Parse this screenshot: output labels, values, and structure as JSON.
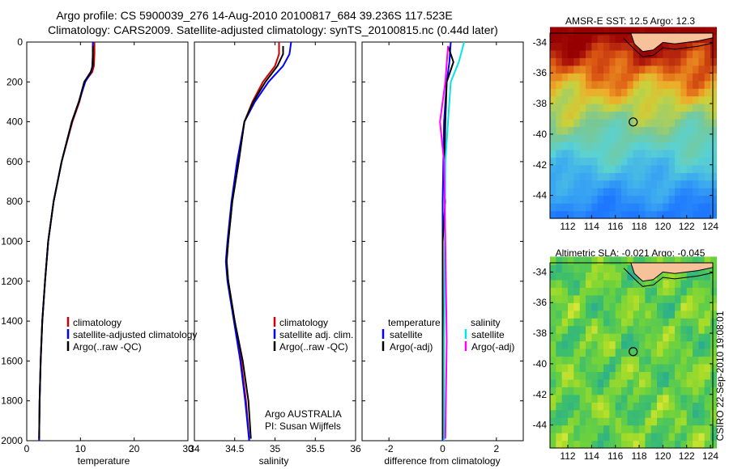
{
  "header": {
    "title_line1": "Argo profile: CS 5900039_276 14-Aug-2010 20100817_684 39.236S 117.523E",
    "title_line2": "Climatology: CARS2009. Satellite-adjusted climatology: synTS_20100815.nc (0.44d later)"
  },
  "colors": {
    "climatology": "#cc0000",
    "satellite": "#0000ff",
    "argo": "#000000",
    "sat_salinity": "#00e5e5",
    "argo_salinity": "#ff00ff",
    "land": "#f7c19a"
  },
  "depth_axis": {
    "min": 0,
    "max": 2000,
    "ticks": [
      0,
      200,
      400,
      600,
      800,
      1000,
      1200,
      1400,
      1600,
      1800,
      2000
    ]
  },
  "chart_data": [
    {
      "type": "line",
      "name": "temperature-panel",
      "xlabel": "temperature",
      "xlim": [
        0,
        30
      ],
      "xticks": [
        0,
        10,
        20,
        30
      ],
      "legend": [
        "climatology",
        "satellite-adjusted climatology",
        "Argo(..raw -QC)"
      ],
      "series": [
        {
          "name": "climatology",
          "color": "#cc0000",
          "points": [
            [
              12.6,
              0
            ],
            [
              12.6,
              60
            ],
            [
              12.5,
              120
            ],
            [
              12.2,
              150
            ],
            [
              10.8,
              200
            ],
            [
              9.8,
              300
            ],
            [
              8.5,
              400
            ],
            [
              6.5,
              600
            ],
            [
              5.0,
              800
            ],
            [
              4.0,
              1000
            ],
            [
              3.4,
              1200
            ],
            [
              2.9,
              1400
            ],
            [
              2.6,
              1600
            ],
            [
              2.4,
              1800
            ],
            [
              2.3,
              2000
            ]
          ]
        },
        {
          "name": "satellite-adjusted climatology",
          "color": "#0000ff",
          "points": [
            [
              12.3,
              0
            ],
            [
              12.3,
              60
            ],
            [
              12.2,
              120
            ],
            [
              12.0,
              150
            ],
            [
              10.9,
              200
            ],
            [
              9.7,
              300
            ],
            [
              8.4,
              400
            ],
            [
              6.5,
              600
            ],
            [
              5.0,
              800
            ],
            [
              4.0,
              1000
            ],
            [
              3.4,
              1200
            ],
            [
              2.9,
              1400
            ],
            [
              2.6,
              1600
            ],
            [
              2.4,
              1800
            ],
            [
              2.3,
              2000
            ]
          ]
        },
        {
          "name": "Argo(..raw -QC)",
          "color": "#000000",
          "points": [
            [
              12.3,
              20
            ],
            [
              12.3,
              120
            ],
            [
              11.9,
              150
            ],
            [
              10.7,
              200
            ],
            [
              9.7,
              300
            ],
            [
              8.4,
              400
            ],
            [
              6.5,
              600
            ],
            [
              5.0,
              800
            ],
            [
              4.0,
              1000
            ],
            [
              3.4,
              1200
            ],
            [
              2.9,
              1400
            ],
            [
              2.6,
              1600
            ],
            [
              2.4,
              1800
            ],
            [
              2.3,
              1990
            ]
          ]
        }
      ]
    },
    {
      "type": "line",
      "name": "salinity-panel",
      "xlabel": "salinity",
      "xlim": [
        34,
        36
      ],
      "xticks": [
        "34",
        "34.5",
        "35",
        "35.5",
        "36"
      ],
      "legend": [
        "climatology",
        "satellite adj. clim.",
        "Argo(..raw -QC)"
      ],
      "annotation": [
        "Argo AUSTRALIA",
        "PI: Susan Wijffels"
      ],
      "series": [
        {
          "name": "climatology",
          "color": "#cc0000",
          "points": [
            [
              35.05,
              0
            ],
            [
              35.05,
              60
            ],
            [
              35.0,
              120
            ],
            [
              34.85,
              200
            ],
            [
              34.72,
              300
            ],
            [
              34.62,
              400
            ],
            [
              34.55,
              600
            ],
            [
              34.47,
              800
            ],
            [
              34.42,
              1000
            ],
            [
              34.4,
              1100
            ],
            [
              34.42,
              1200
            ],
            [
              34.5,
              1400
            ],
            [
              34.58,
              1600
            ],
            [
              34.64,
              1800
            ],
            [
              34.68,
              2000
            ]
          ]
        },
        {
          "name": "satellite adj. clim.",
          "color": "#0000ff",
          "points": [
            [
              35.2,
              0
            ],
            [
              35.18,
              60
            ],
            [
              35.1,
              120
            ],
            [
              34.92,
              200
            ],
            [
              34.75,
              300
            ],
            [
              34.62,
              400
            ],
            [
              34.53,
              600
            ],
            [
              34.46,
              800
            ],
            [
              34.41,
              1000
            ],
            [
              34.39,
              1100
            ],
            [
              34.41,
              1200
            ],
            [
              34.49,
              1400
            ],
            [
              34.57,
              1600
            ],
            [
              34.63,
              1800
            ],
            [
              34.68,
              2000
            ]
          ]
        },
        {
          "name": "Argo(..raw -QC)",
          "color": "#000000",
          "points": [
            [
              35.1,
              20
            ],
            [
              35.1,
              60
            ],
            [
              35.03,
              120
            ],
            [
              34.88,
              200
            ],
            [
              34.73,
              300
            ],
            [
              34.62,
              400
            ],
            [
              34.55,
              600
            ],
            [
              34.47,
              800
            ],
            [
              34.42,
              1000
            ],
            [
              34.4,
              1100
            ],
            [
              34.42,
              1200
            ],
            [
              34.5,
              1400
            ],
            [
              34.6,
              1600
            ],
            [
              34.67,
              1800
            ],
            [
              34.7,
              1990
            ]
          ]
        }
      ]
    },
    {
      "type": "line",
      "name": "difference-panel",
      "xlabel": "difference from climatology",
      "xlim": [
        -3,
        3
      ],
      "xticks": [
        "-2",
        "0",
        "2"
      ],
      "legend_temperature": {
        "heading": "temperature",
        "items": [
          "satellite",
          "Argo(-adj)"
        ]
      },
      "legend_salinity": {
        "heading": "salinity",
        "items": [
          "satellite",
          "Argo(-adj)"
        ]
      },
      "series": [
        {
          "name": "temperature satellite",
          "color": "#0000ff",
          "points": [
            [
              0.3,
              0
            ],
            [
              0.25,
              100
            ],
            [
              0.15,
              200
            ],
            [
              0.05,
              400
            ],
            [
              0.0,
              800
            ],
            [
              0.0,
              1200
            ],
            [
              0.0,
              2000
            ]
          ]
        },
        {
          "name": "temperature Argo(-adj)",
          "color": "#000000",
          "points": [
            [
              0.2,
              20
            ],
            [
              0.4,
              100
            ],
            [
              0.15,
              200
            ],
            [
              0.1,
              400
            ],
            [
              0.05,
              700
            ],
            [
              0.1,
              800
            ],
            [
              0.0,
              1000
            ],
            [
              0.0,
              1500
            ],
            [
              0.0,
              1990
            ]
          ]
        },
        {
          "name": "salinity satellite",
          "color": "#00e5e5",
          "points": [
            [
              0.8,
              0
            ],
            [
              0.6,
              100
            ],
            [
              0.3,
              200
            ],
            [
              0.2,
              400
            ],
            [
              0.1,
              600
            ],
            [
              0.08,
              1000
            ],
            [
              0.05,
              1500
            ],
            [
              0.05,
              2000
            ]
          ]
        },
        {
          "name": "salinity Argo(-adj)",
          "color": "#ff00ff",
          "points": [
            [
              0.2,
              20
            ],
            [
              0.1,
              200
            ],
            [
              -0.1,
              400
            ],
            [
              0.05,
              600
            ],
            [
              0.1,
              1000
            ],
            [
              0.15,
              1500
            ],
            [
              0.1,
              1990
            ]
          ]
        }
      ]
    },
    {
      "type": "heatmap",
      "name": "sst-map",
      "title": "AMSR-E SST: 12.5 Argo: 12.3",
      "xlim": [
        110.5,
        124.2
      ],
      "ylim": [
        -45.5,
        -33.4
      ],
      "xticks": [
        "112",
        "114",
        "116",
        "118",
        "120",
        "122",
        "124"
      ],
      "yticks": [
        "-34",
        "-36",
        "-38",
        "-40",
        "-42",
        "-44"
      ],
      "marker": {
        "lon": 117.5,
        "lat": -39.2
      }
    },
    {
      "type": "heatmap",
      "name": "sla-map",
      "title": "Altimetric SLA: -0.021 Argo: -0.045",
      "xlim": [
        110.5,
        124.2
      ],
      "ylim": [
        -45.5,
        -33.4
      ],
      "xticks": [
        "112",
        "114",
        "116",
        "118",
        "120",
        "122",
        "124"
      ],
      "yticks": [
        "-34",
        "-36",
        "-38",
        "-40",
        "-42",
        "-44"
      ],
      "marker": {
        "lon": 117.5,
        "lat": -39.2
      }
    }
  ],
  "side_stamp": "CSIRO 22-Sep-2010 19:08:01"
}
